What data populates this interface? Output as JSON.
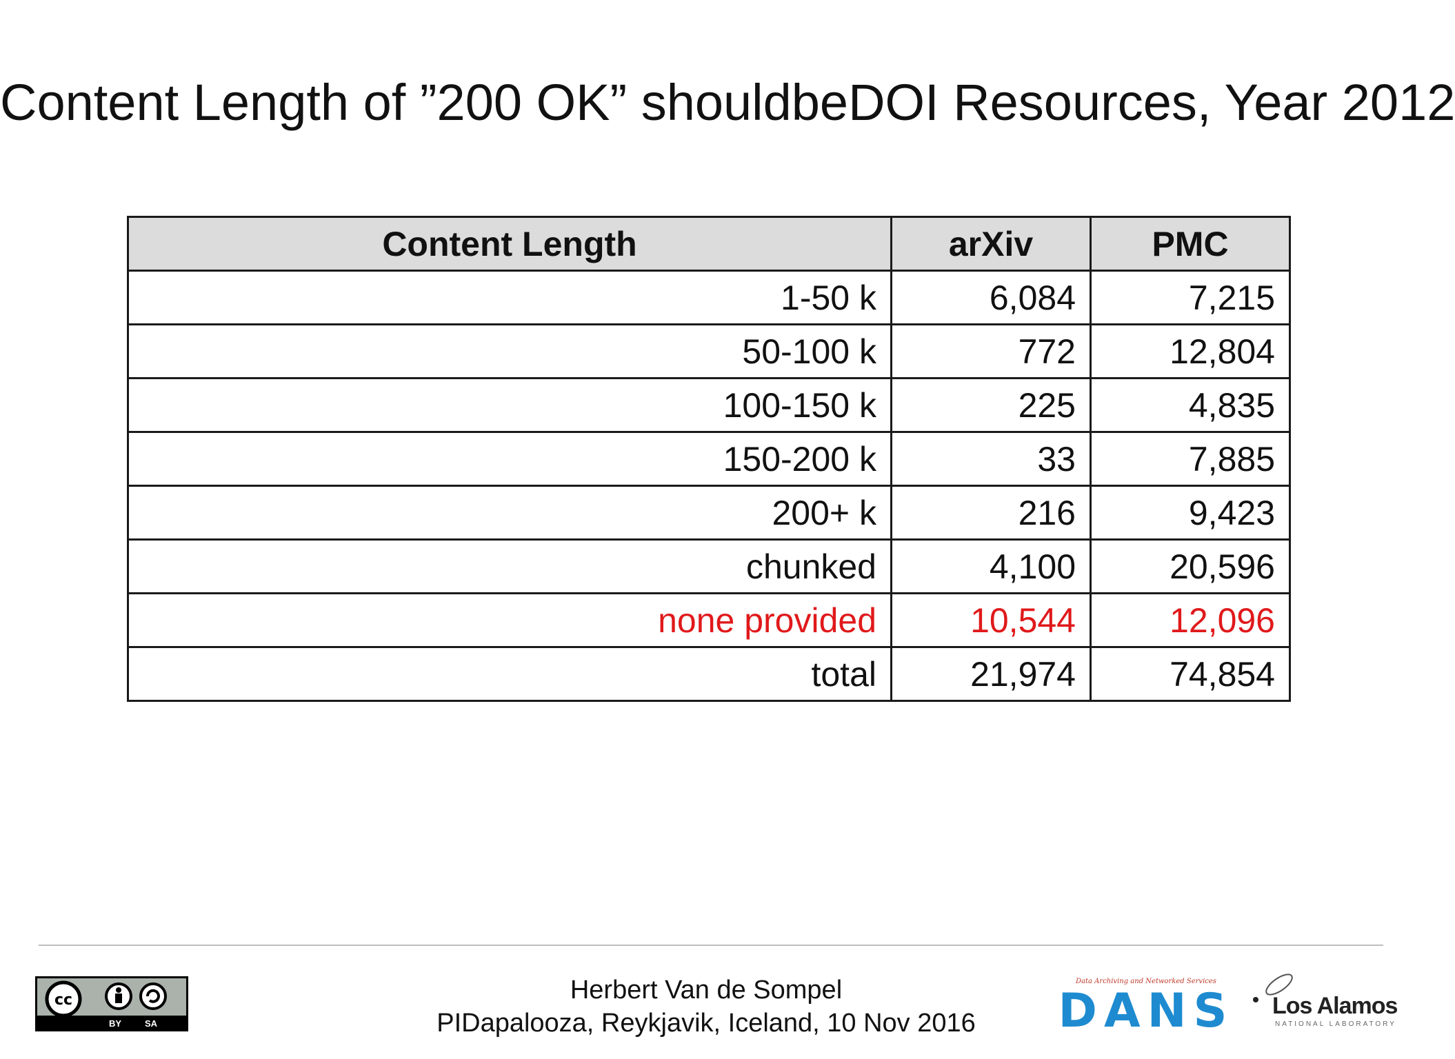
{
  "slide": {
    "title": "Content Length of ”200 OK” shouldbeDOI Resources, Year 2012"
  },
  "table": {
    "headers": [
      "Content Length",
      "arXiv",
      "PMC"
    ],
    "rows": [
      [
        "1-50 k",
        "6,084",
        "7,215"
      ],
      [
        "50-100 k",
        "772",
        "12,804"
      ],
      [
        "100-150 k",
        "225",
        "4,835"
      ],
      [
        "150-200 k",
        "33",
        "7,885"
      ],
      [
        "200+ k",
        "216",
        "9,423"
      ],
      [
        "chunked",
        "4,100",
        "20,596"
      ],
      [
        "none provided",
        "10,544",
        "12,096"
      ],
      [
        "total",
        "21,974",
        "74,854"
      ]
    ],
    "highlight_color": "#e0191b",
    "header_background": "#dcdcdc"
  },
  "footer": {
    "author": "Herbert Van de Sompel",
    "event": "PIDapalooza, Reykjavik, Iceland, 10 Nov 2016",
    "cc_badge": {
      "icon": "cc-by-sa-icon",
      "by_label": "BY",
      "sa_label": "SA"
    },
    "dans_logo": {
      "tagline": "Data Archiving and Networked Services",
      "wordmark": "DANS",
      "color": "#1e8bd0"
    },
    "lanl_logo": {
      "name": "Los Alamos",
      "subtitle": "NATIONAL LABORATORY"
    }
  }
}
